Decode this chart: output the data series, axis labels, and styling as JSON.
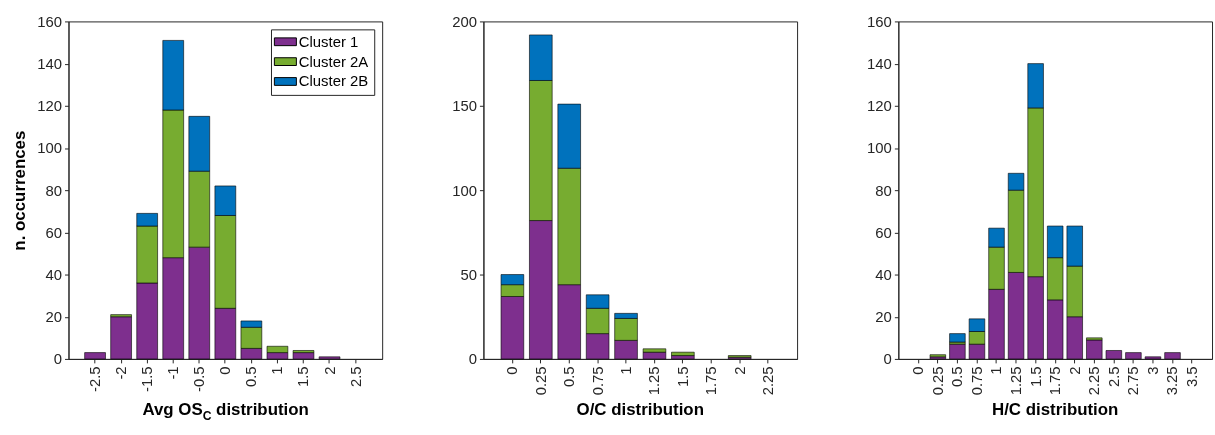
{
  "chart_data": [
    {
      "type": "bar",
      "stacked": true,
      "categories": [
        "-2.5",
        "-2",
        "-1.5",
        "-1",
        "-0.5",
        "0",
        "0.5",
        "1",
        "1.5",
        "2",
        "2.5"
      ],
      "series": [
        {
          "name": "Cluster 1",
          "color": "#7e2f8e",
          "values": [
            3,
            20,
            36,
            48,
            53,
            24,
            5,
            3,
            3,
            1,
            0
          ]
        },
        {
          "name": "Cluster 2A",
          "color": "#77ac30",
          "values": [
            0,
            1,
            27,
            70,
            36,
            44,
            10,
            3,
            1,
            0,
            0
          ]
        },
        {
          "name": "Cluster 2B",
          "color": "#0072bd",
          "values": [
            0,
            0,
            6,
            33,
            26,
            14,
            3,
            0,
            0,
            0,
            0
          ]
        }
      ],
      "ylim": [
        0,
        160
      ],
      "yticks": [
        0,
        20,
        40,
        60,
        80,
        100,
        120,
        140,
        160
      ],
      "xlabel": "Avg OS$_{C}$ distribution",
      "ylabel": "n. occurrences",
      "legend": "top right"
    },
    {
      "type": "bar",
      "stacked": true,
      "categories": [
        "0",
        "0.25",
        "0.5",
        "0.75",
        "1",
        "1.25",
        "1.5",
        "1.75",
        "2",
        "2.25"
      ],
      "series": [
        {
          "color": "#7e2f8e",
          "values": [
            37,
            82,
            44,
            15,
            11,
            4,
            2,
            0,
            1,
            0
          ]
        },
        {
          "color": "#77ac30",
          "values": [
            7,
            83,
            69,
            15,
            13,
            2,
            2,
            0,
            1,
            0
          ]
        },
        {
          "color": "#0072bd",
          "values": [
            6,
            27,
            38,
            8,
            3,
            0,
            0,
            0,
            0,
            0
          ]
        }
      ],
      "ylim": [
        0,
        200
      ],
      "yticks": [
        0,
        50,
        100,
        150,
        200
      ],
      "xlabel": "O/C distribution"
    },
    {
      "type": "bar",
      "stacked": true,
      "categories": [
        "0",
        "0.25",
        "0.5",
        "0.75",
        "1",
        "1.25",
        "1.5",
        "1.75",
        "2",
        "2.25",
        "2.5",
        "2.75",
        "3",
        "3.25",
        "3.5"
      ],
      "series": [
        {
          "color": "#7e2f8e",
          "values": [
            0,
            1,
            7,
            7,
            33,
            41,
            39,
            28,
            20,
            9,
            4,
            3,
            1,
            3,
            0
          ]
        },
        {
          "color": "#77ac30",
          "values": [
            0,
            1,
            1,
            6,
            20,
            39,
            80,
            20,
            24,
            1,
            0,
            0,
            0,
            0,
            0
          ]
        },
        {
          "color": "#0072bd",
          "values": [
            0,
            0,
            4,
            6,
            9,
            8,
            21,
            15,
            19,
            0,
            0,
            0,
            0,
            0,
            0
          ]
        }
      ],
      "ylim": [
        0,
        160
      ],
      "yticks": [
        0,
        20,
        40,
        60,
        80,
        100,
        120,
        140,
        160
      ],
      "xlabel": "H/C distribution"
    }
  ]
}
